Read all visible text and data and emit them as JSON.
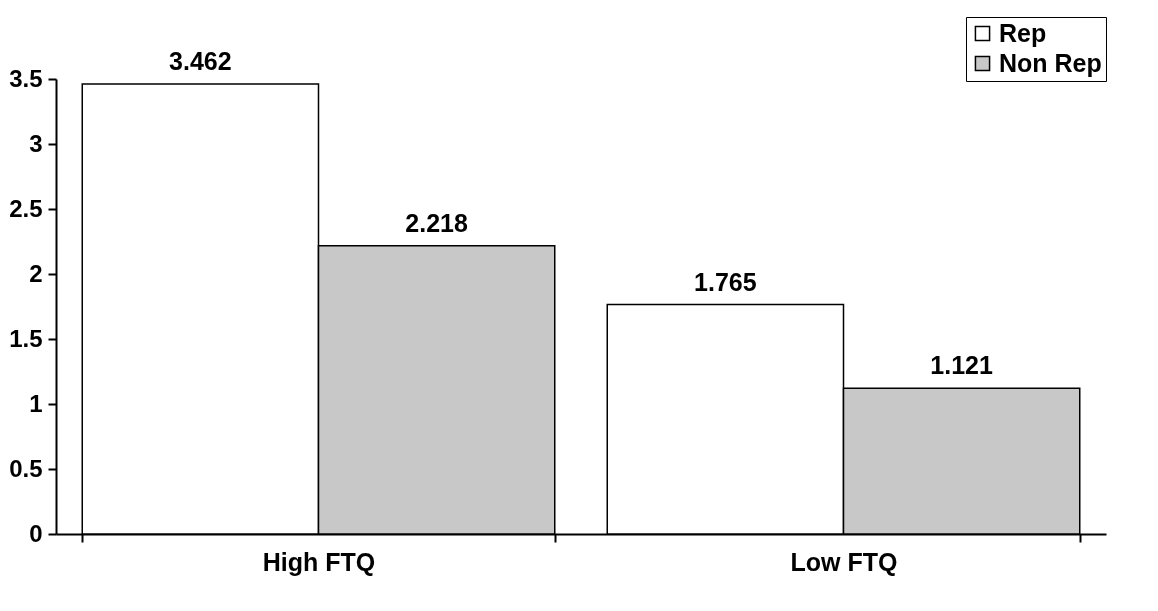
{
  "chart_data": {
    "type": "bar",
    "categories": [
      "High FTQ",
      "Low FTQ"
    ],
    "series": [
      {
        "name": "Rep",
        "color": "#ffffff",
        "values": [
          3.462,
          1.765
        ]
      },
      {
        "name": "Non Rep",
        "color": "#c8c8c8",
        "values": [
          2.218,
          1.121
        ]
      }
    ],
    "ylim": [
      0,
      3.5
    ],
    "yticks": [
      0,
      0.5,
      1,
      1.5,
      2,
      2.5,
      3,
      3.5
    ],
    "data_labels": true,
    "legend": "top right",
    "grid": false
  }
}
